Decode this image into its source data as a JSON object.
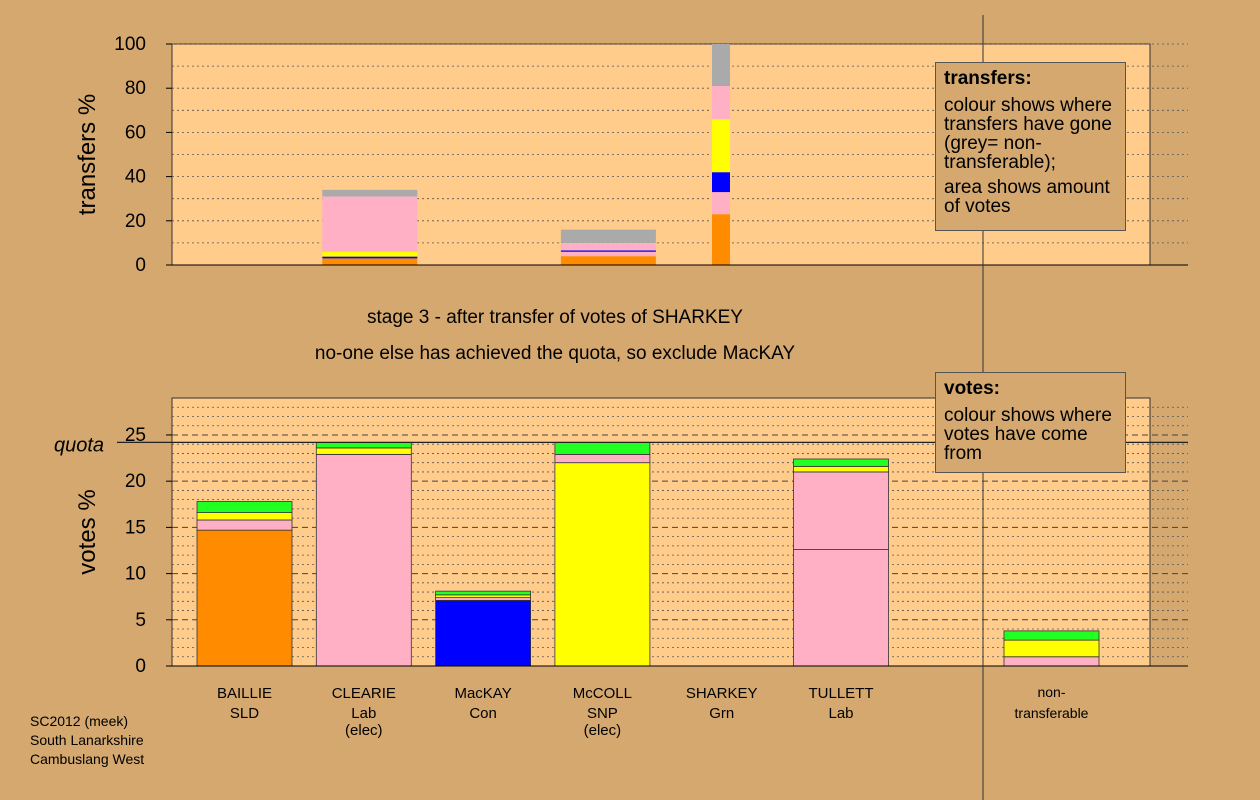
{
  "stage_text": {
    "line1": "stage 3 - after transfer of votes of SHARKEY",
    "line2": "no-one else has achieved the quota, so exclude MacKAY"
  },
  "legend_transfers": {
    "title": "transfers:",
    "text1": "colour shows where transfers have gone (grey= non-transferable);",
    "text2": "area shows amount of votes"
  },
  "legend_votes": {
    "title": "votes:",
    "text1": "colour shows where votes have come from"
  },
  "footer": {
    "line1": "SC2012 (meek)",
    "line2": "South Lanarkshire",
    "line3": "Cambuslang West"
  },
  "colors": {
    "orange": "#ff8c00",
    "pink": "#ffb0c4",
    "blue": "#0000ff",
    "yellow": "#ffff00",
    "green": "#22ff22",
    "grey": "#aaaaaa",
    "plot_bg": "#ffcc8c",
    "page_bg": "#d4a86f"
  },
  "chart_data": [
    {
      "type": "bar",
      "ylabel": "transfers %",
      "ylim": [
        0,
        100
      ],
      "yticks": [
        0,
        20,
        40,
        60,
        80,
        100
      ],
      "columns": [
        {
          "index": 1,
          "width": "full",
          "segments": [
            {
              "color": "orange",
              "value": 3
            },
            {
              "color": "blue",
              "value": 0.8
            },
            {
              "color": "yellow",
              "value": 2.2
            },
            {
              "color": "pink",
              "value": 25
            },
            {
              "color": "grey",
              "value": 3
            }
          ]
        },
        {
          "index": 3,
          "width": "full",
          "segments": [
            {
              "color": "orange",
              "value": 4
            },
            {
              "color": "pink",
              "value": 2
            },
            {
              "color": "blue",
              "value": 0.6
            },
            {
              "color": "pink",
              "value": 3.4
            },
            {
              "color": "grey",
              "value": 6
            }
          ]
        },
        {
          "index": 4,
          "width": "narrow",
          "segments": [
            {
              "color": "orange",
              "value": 23
            },
            {
              "color": "pink",
              "value": 10
            },
            {
              "color": "blue",
              "value": 9
            },
            {
              "color": "yellow",
              "value": 24
            },
            {
              "color": "pink",
              "value": 15
            },
            {
              "color": "grey",
              "value": 19
            }
          ]
        }
      ]
    },
    {
      "type": "bar",
      "ylabel": "votes %",
      "ylim": [
        0,
        29
      ],
      "yticks": [
        0,
        5,
        10,
        15,
        20,
        25
      ],
      "quota": 24.2,
      "quota_label": "quota",
      "candidates": [
        {
          "name": "BAILLIE",
          "party": "SLD",
          "status": "",
          "segments": [
            {
              "color": "orange",
              "value": 14.7
            },
            {
              "color": "pink",
              "value": 1.1
            },
            {
              "color": "yellow",
              "value": 0.8
            },
            {
              "color": "green",
              "value": 1.2
            }
          ]
        },
        {
          "name": "CLEARIE",
          "party": "Lab",
          "status": "(elec)",
          "segments": [
            {
              "color": "pink",
              "value": 22.9
            },
            {
              "color": "yellow",
              "value": 0.7
            },
            {
              "color": "green",
              "value": 0.6
            }
          ]
        },
        {
          "name": "MacKAY",
          "party": "Con",
          "status": "",
          "segments": [
            {
              "color": "blue",
              "value": 7.1
            },
            {
              "color": "pink",
              "value": 0.3
            },
            {
              "color": "yellow",
              "value": 0.3
            },
            {
              "color": "green",
              "value": 0.4
            }
          ]
        },
        {
          "name": "McCOLL",
          "party": "SNP",
          "status": "(elec)",
          "segments": [
            {
              "color": "yellow",
              "value": 22.0
            },
            {
              "color": "pink",
              "value": 0.9
            },
            {
              "color": "green",
              "value": 1.3
            }
          ]
        },
        {
          "name": "SHARKEY",
          "party": "Grn",
          "status": "",
          "segments": []
        },
        {
          "name": "TULLETT",
          "party": "Lab",
          "status": "",
          "segments": [
            {
              "color": "pink",
              "value": 12.6
            },
            {
              "color": "pink",
              "value": 8.4
            },
            {
              "color": "yellow",
              "value": 0.6
            },
            {
              "color": "green",
              "value": 0.8
            }
          ]
        }
      ],
      "nontransferable": {
        "label_line1": "non-",
        "label_line2": "transferable",
        "segments": [
          {
            "color": "pink",
            "value": 1.0
          },
          {
            "color": "yellow",
            "value": 1.8
          },
          {
            "color": "green",
            "value": 1.0
          }
        ]
      }
    }
  ]
}
